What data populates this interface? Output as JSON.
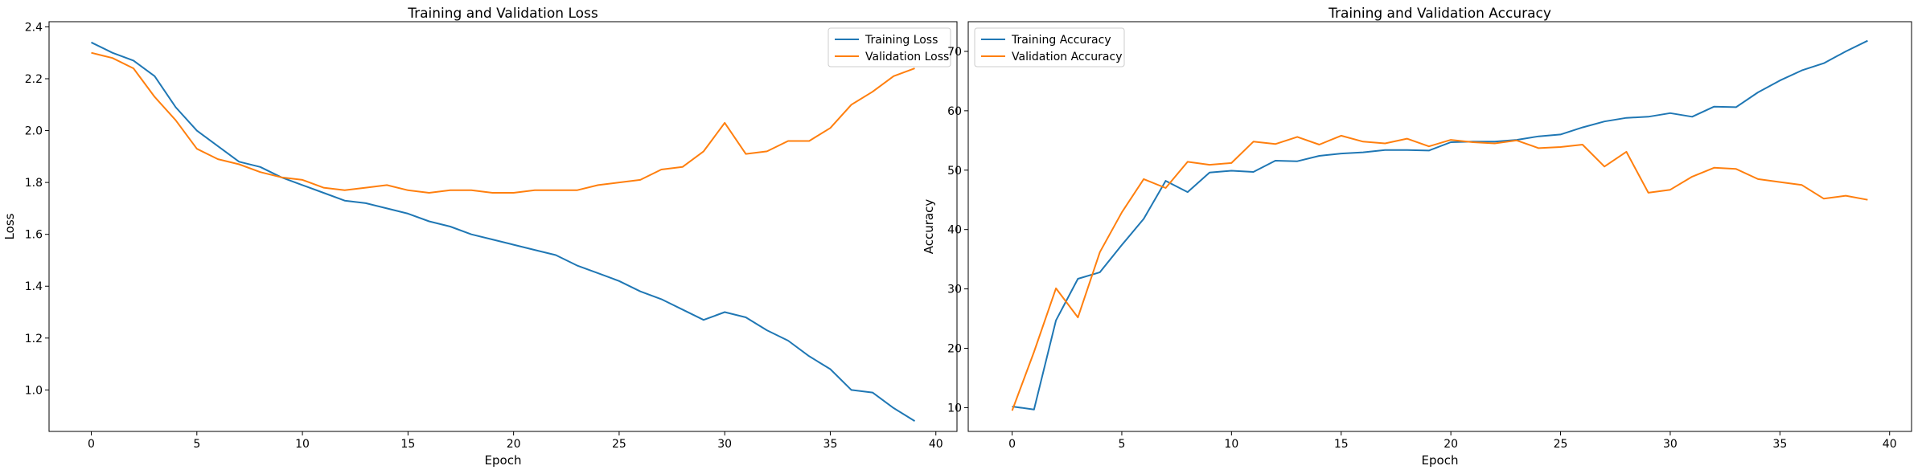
{
  "chart_data": [
    {
      "type": "line",
      "title": "Training and Validation Loss",
      "xlabel": "Epoch",
      "ylabel": "Loss",
      "xlim": [
        -2,
        41
      ],
      "ylim": [
        0.84,
        2.42
      ],
      "xticks": [
        0,
        5,
        10,
        15,
        20,
        25,
        30,
        35,
        40
      ],
      "yticks": [
        1.0,
        1.2,
        1.4,
        1.6,
        1.8,
        2.0,
        2.2,
        2.4
      ],
      "ytick_labels": [
        "1.0",
        "1.2",
        "1.4",
        "1.6",
        "1.8",
        "2.0",
        "2.2",
        "2.4"
      ],
      "grid": false,
      "legend": "upper right",
      "x": [
        0,
        1,
        2,
        3,
        4,
        5,
        6,
        7,
        8,
        9,
        10,
        11,
        12,
        13,
        14,
        15,
        16,
        17,
        18,
        19,
        20,
        21,
        22,
        23,
        24,
        25,
        26,
        27,
        28,
        29,
        30,
        31,
        32,
        33,
        34,
        35,
        36,
        37,
        38,
        39
      ],
      "series": [
        {
          "name": "Training Loss",
          "color": "#1f77b4",
          "values": [
            2.34,
            2.3,
            2.27,
            2.21,
            2.09,
            2.0,
            1.94,
            1.88,
            1.86,
            1.82,
            1.79,
            1.76,
            1.73,
            1.72,
            1.7,
            1.68,
            1.65,
            1.63,
            1.6,
            1.58,
            1.56,
            1.54,
            1.52,
            1.48,
            1.45,
            1.42,
            1.38,
            1.35,
            1.31,
            1.27,
            1.3,
            1.28,
            1.23,
            1.19,
            1.13,
            1.08,
            1.0,
            0.99,
            0.93,
            0.88
          ]
        },
        {
          "name": "Validation Loss",
          "color": "#ff7f0e",
          "values": [
            2.3,
            2.28,
            2.24,
            2.13,
            2.04,
            1.93,
            1.89,
            1.87,
            1.84,
            1.82,
            1.81,
            1.78,
            1.77,
            1.78,
            1.79,
            1.77,
            1.76,
            1.77,
            1.77,
            1.76,
            1.76,
            1.77,
            1.77,
            1.77,
            1.79,
            1.8,
            1.81,
            1.85,
            1.86,
            1.92,
            2.03,
            1.91,
            1.92,
            1.96,
            1.96,
            2.01,
            2.1,
            2.15,
            2.21,
            2.24
          ]
        }
      ]
    },
    {
      "type": "line",
      "title": "Training and Validation Accuracy",
      "xlabel": "Epoch",
      "ylabel": "Accuracy",
      "xlim": [
        -2,
        41
      ],
      "ylim": [
        6,
        75
      ],
      "xticks": [
        0,
        5,
        10,
        15,
        20,
        25,
        30,
        35,
        40
      ],
      "yticks": [
        10,
        20,
        30,
        40,
        50,
        60,
        70
      ],
      "ytick_labels": [
        "10",
        "20",
        "30",
        "40",
        "50",
        "60",
        "70"
      ],
      "grid": false,
      "legend": "upper left",
      "x": [
        0,
        1,
        2,
        3,
        4,
        5,
        6,
        7,
        8,
        9,
        10,
        11,
        12,
        13,
        14,
        15,
        16,
        17,
        18,
        19,
        20,
        21,
        22,
        23,
        24,
        25,
        26,
        27,
        28,
        29,
        30,
        31,
        32,
        33,
        34,
        35,
        36,
        37,
        38,
        39
      ],
      "series": [
        {
          "name": "Training Accuracy",
          "color": "#1f77b4",
          "values": [
            10.2,
            9.7,
            24.7,
            31.7,
            32.8,
            37.4,
            41.8,
            48.2,
            46.3,
            49.6,
            49.9,
            49.7,
            51.6,
            51.5,
            52.4,
            52.8,
            53.0,
            53.4,
            53.4,
            53.3,
            54.7,
            54.8,
            54.8,
            55.1,
            55.7,
            56.0,
            57.2,
            58.2,
            58.8,
            59.0,
            59.6,
            59.0,
            60.7,
            60.6,
            63.1,
            65.1,
            66.8,
            68.0,
            70.0,
            71.8
          ]
        },
        {
          "name": "Validation Accuracy",
          "color": "#ff7f0e",
          "values": [
            9.5,
            19.4,
            30.1,
            25.2,
            36.2,
            42.9,
            48.5,
            47.0,
            51.4,
            50.9,
            51.2,
            54.8,
            54.4,
            55.6,
            54.3,
            55.8,
            54.8,
            54.5,
            55.3,
            54.0,
            55.1,
            54.7,
            54.5,
            55.0,
            53.7,
            53.9,
            54.3,
            50.6,
            53.1,
            46.2,
            46.7,
            48.9,
            50.4,
            50.2,
            48.5,
            48.0,
            47.5,
            45.2,
            45.7,
            45.0
          ]
        }
      ]
    }
  ]
}
